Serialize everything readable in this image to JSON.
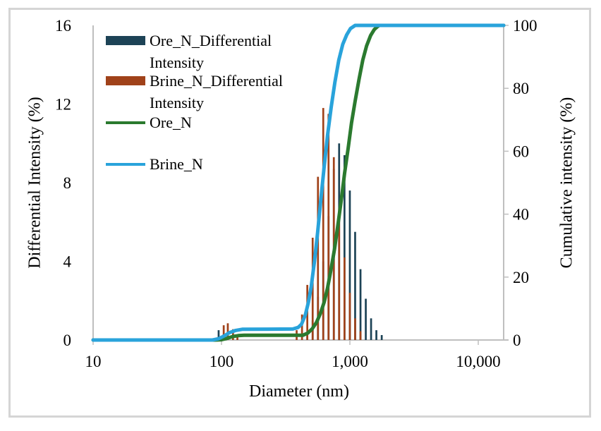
{
  "figure": {
    "background": "#ffffff",
    "border_color": "#d5d5d5"
  },
  "chart_data": {
    "type": "bar+line combo (particle size distribution)",
    "title": "",
    "grid": false,
    "legend_position": "top-left inside plot",
    "axis_color": "#bfbfbf",
    "x_axis": {
      "label": "Diameter (nm)",
      "scale": "log",
      "min": 10,
      "max": 15800,
      "ticks": [
        10,
        100,
        1000,
        10000
      ],
      "tick_labels": [
        "10",
        "100",
        "1,000",
        "10,000"
      ]
    },
    "y_left": {
      "label": "Differential Intensity  (%)",
      "min": 0,
      "max": 16,
      "ticks": [
        0,
        4,
        8,
        12,
        16
      ]
    },
    "y_right": {
      "label": "Cumulative intensity (%)",
      "min": 0,
      "max": 100,
      "ticks": [
        0,
        20,
        40,
        60,
        80,
        100
      ]
    },
    "legend": [
      {
        "label": "Ore_N_Differential Intensity",
        "type": "bar",
        "color": "#1d4356"
      },
      {
        "label": "Brine_N_Differential Intensity",
        "type": "bar",
        "color": "#a0421a"
      },
      {
        "label": "Ore_N",
        "type": "line",
        "color": "#2b7a2f"
      },
      {
        "label": "Brine_N",
        "type": "line",
        "color": "#29a3db"
      }
    ],
    "bar_series": [
      {
        "name": "Ore_N_Differential Intensity",
        "color": "#1d4356",
        "units": [
          "diameter_nm",
          "percent"
        ],
        "points": [
          [
            95,
            0.5
          ],
          [
            104,
            0.3
          ],
          [
            466,
            0.4
          ],
          [
            513,
            1.0
          ],
          [
            564,
            2.2
          ],
          [
            620,
            4.0
          ],
          [
            682,
            6.3
          ],
          [
            750,
            8.7
          ],
          [
            825,
            10.0
          ],
          [
            908,
            9.4
          ],
          [
            999,
            7.6
          ],
          [
            1099,
            5.5
          ],
          [
            1209,
            3.6
          ],
          [
            1330,
            2.1
          ],
          [
            1463,
            1.1
          ],
          [
            1609,
            0.5
          ],
          [
            1770,
            0.25
          ]
        ]
      },
      {
        "name": "Brine_N_Differential Intensity",
        "color": "#a0421a",
        "units": [
          "diameter_nm",
          "percent"
        ],
        "points": [
          [
            104,
            0.75
          ],
          [
            112,
            0.85
          ],
          [
            123,
            0.55
          ],
          [
            133,
            0.2
          ],
          [
            385,
            0.5
          ],
          [
            424,
            1.3
          ],
          [
            466,
            2.8
          ],
          [
            513,
            5.2
          ],
          [
            564,
            8.3
          ],
          [
            620,
            11.8
          ],
          [
            682,
            11.5
          ],
          [
            750,
            9.3
          ],
          [
            825,
            6.7
          ],
          [
            908,
            4.2
          ],
          [
            999,
            2.4
          ],
          [
            1099,
            1.1
          ],
          [
            1209,
            0.45
          ]
        ]
      }
    ],
    "line_series": [
      {
        "name": "Ore_N",
        "color": "#2b7a2f",
        "units": [
          "diameter_nm",
          "cumulative_percent"
        ],
        "points": [
          [
            10,
            0
          ],
          [
            90,
            0
          ],
          [
            100,
            0.1
          ],
          [
            110,
            0.5
          ],
          [
            122,
            1.1
          ],
          [
            135,
            1.4
          ],
          [
            150,
            1.5
          ],
          [
            430,
            1.5
          ],
          [
            470,
            2.2
          ],
          [
            510,
            3.6
          ],
          [
            550,
            5.6
          ],
          [
            590,
            8.5
          ],
          [
            630,
            12
          ],
          [
            670,
            16.5
          ],
          [
            710,
            22
          ],
          [
            760,
            29
          ],
          [
            810,
            37
          ],
          [
            860,
            45
          ],
          [
            910,
            53
          ],
          [
            970,
            61
          ],
          [
            1030,
            69
          ],
          [
            1100,
            76
          ],
          [
            1180,
            83
          ],
          [
            1260,
            89
          ],
          [
            1350,
            93.5
          ],
          [
            1450,
            96.8
          ],
          [
            1550,
            98.7
          ],
          [
            1650,
            99.7
          ],
          [
            1700,
            100
          ],
          [
            16000,
            100
          ]
        ]
      },
      {
        "name": "Brine_N",
        "color": "#29a3db",
        "units": [
          "diameter_nm",
          "cumulative_percent"
        ],
        "points": [
          [
            10,
            0
          ],
          [
            85,
            0
          ],
          [
            95,
            0.4
          ],
          [
            105,
            1.3
          ],
          [
            115,
            2.3
          ],
          [
            128,
            3.0
          ],
          [
            145,
            3.4
          ],
          [
            360,
            3.5
          ],
          [
            395,
            4
          ],
          [
            420,
            5
          ],
          [
            450,
            8
          ],
          [
            475,
            12
          ],
          [
            500,
            17
          ],
          [
            530,
            25
          ],
          [
            560,
            34
          ],
          [
            595,
            45
          ],
          [
            630,
            55
          ],
          [
            670,
            65
          ],
          [
            715,
            74
          ],
          [
            765,
            82
          ],
          [
            820,
            89
          ],
          [
            880,
            94
          ],
          [
            945,
            97
          ],
          [
            1010,
            99
          ],
          [
            1100,
            100
          ],
          [
            16000,
            100
          ]
        ]
      }
    ]
  }
}
